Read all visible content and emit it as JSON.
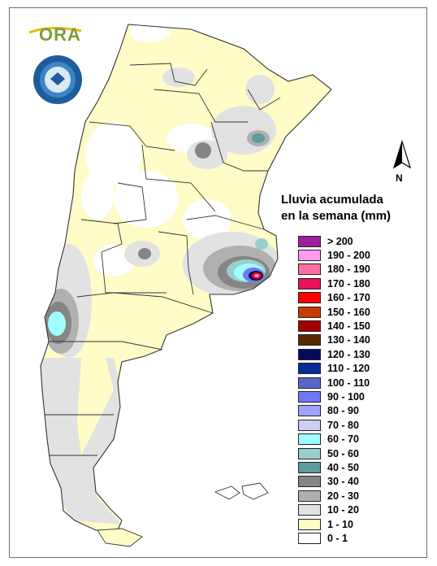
{
  "logo": {
    "text": "ORA",
    "seal": "servicio-meteorologico-nacional-seal"
  },
  "north_arrow": {
    "label": "N"
  },
  "legend": {
    "title_line1": "Lluvia acumulada",
    "title_line2": "en la semana (mm)",
    "classes": [
      {
        "label": "> 200",
        "color": "#9b1f9b"
      },
      {
        "label": "190 - 200",
        "color": "#ff9cf2"
      },
      {
        "label": "180 - 190",
        "color": "#ff6fa6"
      },
      {
        "label": "170 - 180",
        "color": "#e8115a"
      },
      {
        "label": "160 - 170",
        "color": "#ff0000"
      },
      {
        "label": "150 - 160",
        "color": "#c83c00"
      },
      {
        "label": "140 - 150",
        "color": "#a30000"
      },
      {
        "label": "130 - 140",
        "color": "#5a2800"
      },
      {
        "label": "120 - 130",
        "color": "#0a0a5a"
      },
      {
        "label": "110 - 120",
        "color": "#0a2a98"
      },
      {
        "label": "100 - 110",
        "color": "#5c63c9"
      },
      {
        "label": "90 - 100",
        "color": "#6f7af2"
      },
      {
        "label": "80 - 90",
        "color": "#9ea4ff"
      },
      {
        "label": "70 - 80",
        "color": "#ccd0f6"
      },
      {
        "label": "60 - 70",
        "color": "#9ffcff"
      },
      {
        "label": "50 - 60",
        "color": "#98cfcc"
      },
      {
        "label": "40 - 50",
        "color": "#5f9b9c"
      },
      {
        "label": "30 - 40",
        "color": "#858585"
      },
      {
        "label": "20 - 30",
        "color": "#b0b0b0"
      },
      {
        "label": "10 - 20",
        "color": "#e2e2e2"
      },
      {
        "label": "1 - 10",
        "color": "#fffcc8"
      },
      {
        "label": "0 - 1",
        "color": "#ffffff"
      }
    ]
  }
}
